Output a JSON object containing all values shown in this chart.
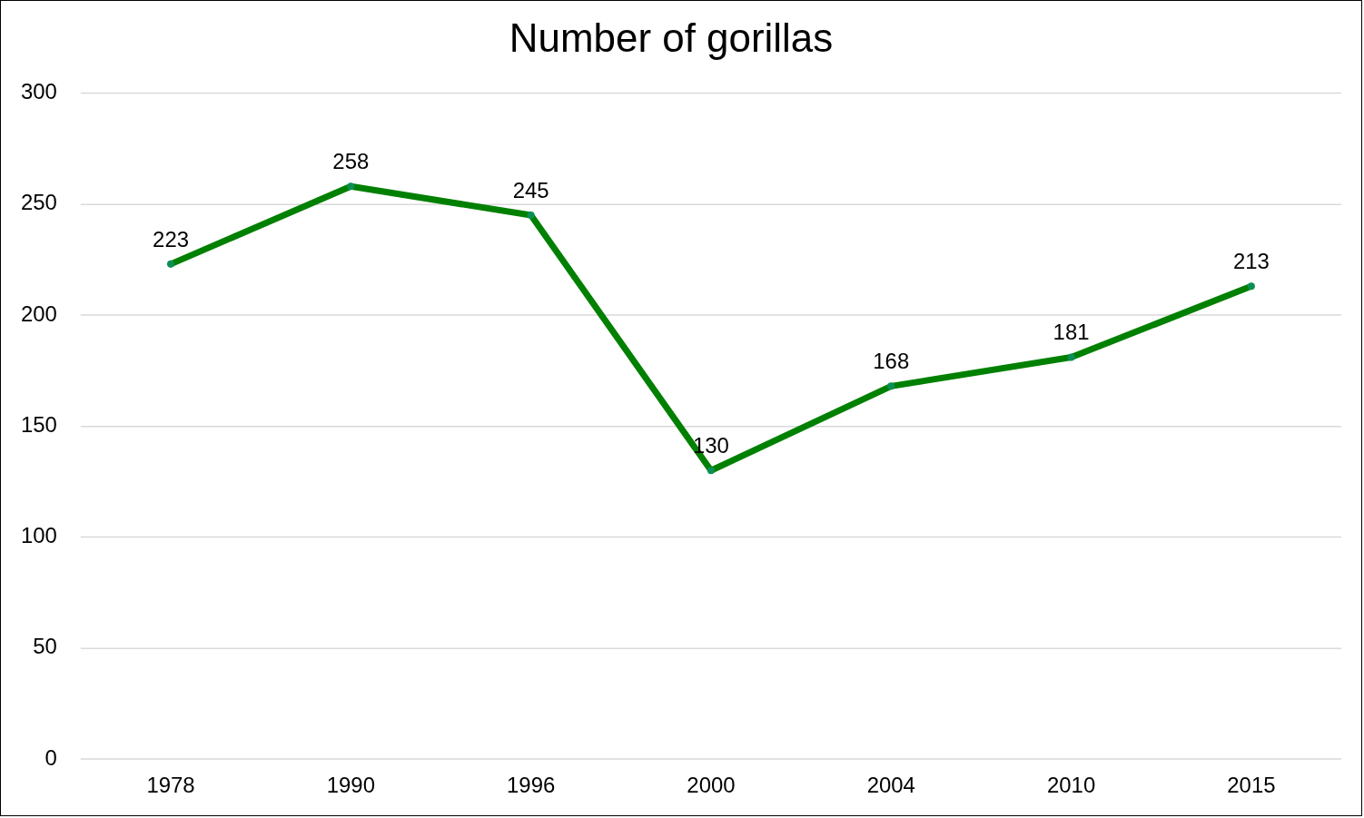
{
  "chart_data": {
    "type": "line",
    "title": "Number of gorillas",
    "categories": [
      "1978",
      "1990",
      "1996",
      "2000",
      "2004",
      "2010",
      "2015"
    ],
    "series": [
      {
        "color": "#008000",
        "values": [
          223,
          258,
          245,
          130,
          168,
          181,
          213
        ]
      }
    ],
    "ylim": [
      0,
      300
    ],
    "yticks": [
      0,
      50,
      100,
      150,
      200,
      250,
      300
    ],
    "grid": "y",
    "legend": false,
    "marker": "circle",
    "line_style": "solid",
    "data_labels": true
  }
}
